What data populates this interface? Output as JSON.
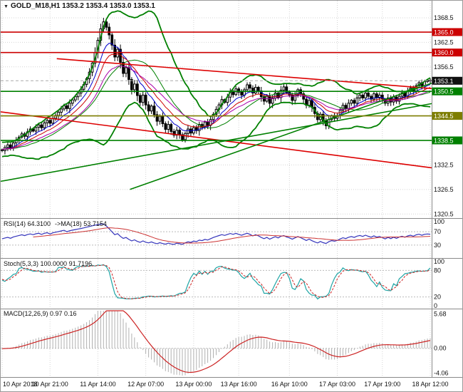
{
  "window": {
    "title": "GOLD_M18,H1 1353.2 1353.4 1353.0 1353.1",
    "dropdown_icon": "▼"
  },
  "panels": {
    "rsi_label": "RSI(14) 64.3100",
    "rsi_ma_label": "->MA(18) 53.7154",
    "stoch_label": "Stoch(5,3,3) 100.0000 91.7196",
    "macd_label": "MACD(12,26,9) 0.97 0.16"
  },
  "chart_data": {
    "type": "candlestick",
    "title": "GOLD_M18,H1",
    "x_labels": [
      {
        "text": "10 Apr 2018",
        "idx": 0
      },
      {
        "text": "10 Apr 21:00",
        "idx": 17
      },
      {
        "text": "11 Apr 14:00",
        "idx": 34
      },
      {
        "text": "12 Apr 07:00",
        "idx": 51
      },
      {
        "text": "13 Apr 00:00",
        "idx": 68
      },
      {
        "text": "13 Apr 16:00",
        "idx": 84
      },
      {
        "text": "16 Apr 10:00",
        "idx": 102
      },
      {
        "text": "17 Apr 03:00",
        "idx": 119
      },
      {
        "text": "17 Apr 19:00",
        "idx": 135
      },
      {
        "text": "18 Apr 12:00",
        "idx": 152
      }
    ],
    "main": {
      "y_min": 1319.5,
      "y_max": 1372.5,
      "axis_ticks": [
        1368.5,
        1362.5,
        1356.5,
        1350.5,
        1344.5,
        1338.5,
        1332.5,
        1326.5,
        1320.5
      ],
      "levels": [
        {
          "value": 1365.0,
          "label": "1365.0",
          "color": "#cc0000",
          "current": false
        },
        {
          "value": 1360.0,
          "label": "1360.0",
          "color": "#cc0000",
          "current": false
        },
        {
          "value": 1353.1,
          "label": "1353.1",
          "color": "#111111",
          "current": true
        },
        {
          "value": 1350.5,
          "label": "1350.5",
          "color": "#008000",
          "current": false
        },
        {
          "value": 1344.5,
          "label": "1344.5",
          "color": "#7d7d00",
          "current": false
        },
        {
          "value": 1338.5,
          "label": "1338.5",
          "color": "#008000",
          "current": false
        }
      ],
      "trendlines": [
        {
          "x1": 0.13,
          "y1": 1358.5,
          "x2": 1.0,
          "y2": 1351.2,
          "color": "#dd0000"
        },
        {
          "x1": 0.0,
          "y1": 1345.5,
          "x2": 1.0,
          "y2": 1331.8,
          "color": "#dd0000"
        },
        {
          "x1": 0.0,
          "y1": 1328.5,
          "x2": 1.0,
          "y2": 1347.5,
          "color": "#008000"
        },
        {
          "x1": 0.3,
          "y1": 1326.5,
          "x2": 1.0,
          "y2": 1352.5,
          "color": "#008000"
        }
      ],
      "warmup": [
        1336.5,
        1335.2,
        1336.8,
        1334.9,
        1336.1,
        1337.3,
        1335.6,
        1336.9,
        1338.0,
        1336.4,
        1335.0,
        1336.6,
        1337.8,
        1336.2,
        1334.8,
        1336.3,
        1337.1,
        1335.9,
        1336.7,
        1336.2
      ],
      "closes": [
        1336.0,
        1336.8,
        1337.4,
        1336.6,
        1337.9,
        1338.6,
        1339.3,
        1340.1,
        1339.5,
        1340.6,
        1341.3,
        1340.8,
        1341.7,
        1342.3,
        1341.6,
        1342.8,
        1343.4,
        1342.7,
        1343.9,
        1344.6,
        1345.4,
        1346.2,
        1347.0,
        1346.3,
        1347.6,
        1348.4,
        1349.2,
        1350.1,
        1351.0,
        1352.2,
        1353.6,
        1355.2,
        1357.4,
        1360.0,
        1363.0,
        1365.8,
        1367.5,
        1366.2,
        1364.3,
        1361.8,
        1358.9,
        1360.8,
        1357.6,
        1354.9,
        1356.3,
        1353.4,
        1350.9,
        1352.3,
        1349.5,
        1347.8,
        1349.6,
        1347.2,
        1345.7,
        1346.9,
        1344.8,
        1343.2,
        1344.4,
        1342.6,
        1341.2,
        1342.4,
        1340.7,
        1339.8,
        1341.0,
        1339.9,
        1338.7,
        1340.2,
        1341.3,
        1340.3,
        1341.6,
        1340.9,
        1342.4,
        1341.7,
        1343.0,
        1342.2,
        1343.6,
        1344.9,
        1346.1,
        1347.2,
        1348.5,
        1347.8,
        1349.1,
        1350.4,
        1349.7,
        1351.1,
        1350.3,
        1349.6,
        1350.9,
        1352.1,
        1351.3,
        1350.1,
        1351.5,
        1350.6,
        1349.2,
        1348.1,
        1349.3,
        1347.6,
        1348.9,
        1350.1,
        1349.0,
        1350.8,
        1351.6,
        1350.3,
        1349.6,
        1348.3,
        1349.6,
        1350.9,
        1349.9,
        1348.6,
        1347.1,
        1348.3,
        1346.6,
        1345.1,
        1343.6,
        1344.9,
        1343.3,
        1342.1,
        1343.6,
        1344.6,
        1343.9,
        1344.6,
        1345.9,
        1347.1,
        1346.3,
        1347.6,
        1348.3,
        1347.6,
        1348.9,
        1349.6,
        1348.9,
        1350.1,
        1349.3,
        1348.6,
        1349.9,
        1348.9,
        1349.6,
        1348.6,
        1347.6,
        1348.9,
        1347.9,
        1349.1,
        1348.1,
        1349.3,
        1350.1,
        1349.3,
        1350.6,
        1351.3,
        1350.6,
        1351.9,
        1352.6,
        1351.9,
        1352.9,
        1353.2,
        1353.1
      ],
      "colors": {
        "candle": "#000000",
        "band": "#008000",
        "ma_fast": "#0000cc",
        "ma_mid": "#cc0000",
        "ma_slow": "#aa00aa"
      }
    },
    "rsi": {
      "period": 14,
      "ma_period": 18,
      "ticks": [
        100,
        70,
        30
      ],
      "levels": [
        70,
        30
      ],
      "colors": {
        "main": "#3333bb",
        "signal": "#cc3333"
      }
    },
    "stoch": {
      "k": 5,
      "slow": 3,
      "d": 3,
      "ticks": [
        100,
        80,
        20,
        0
      ],
      "levels": [
        80,
        20
      ],
      "colors": {
        "main": "#1fa5a5",
        "signal": "#cc2222"
      }
    },
    "macd": {
      "fast": 12,
      "slow": 26,
      "signal": 9,
      "y_min": -4.5,
      "y_max": 6.2,
      "ticks": [
        "5.68",
        "0.00",
        "-4.06"
      ],
      "tick_values": [
        5.68,
        0,
        -4.06
      ],
      "colors": {
        "hist": "#b0b0b0",
        "signal": "#cc2222"
      }
    }
  }
}
